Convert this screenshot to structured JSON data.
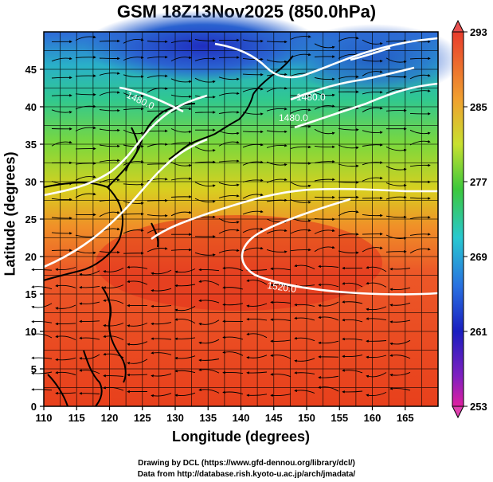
{
  "title": "GSM 18Z13Nov2025 (850.0hPa)",
  "xlabel": "Longitude (degrees)",
  "ylabel": "Latitude  (degrees)",
  "credit_line1": "Drawing by DCL (https://www.gfd-dennou.org/library/dcl/)",
  "credit_line2": "Data from http://database.rish.kyoto-u.ac.jp/arch/jmadata/",
  "chart_data": {
    "type": "heatmap",
    "x_ticks": [
      "110",
      "115",
      "120",
      "125",
      "130",
      "135",
      "140",
      "145",
      "150",
      "155",
      "160",
      "165"
    ],
    "y_ticks": [
      "0",
      "5",
      "10",
      "15",
      "20",
      "25",
      "30",
      "35",
      "40",
      "45"
    ],
    "xlim": [
      110,
      170
    ],
    "ylim": [
      0,
      50
    ],
    "colorbar_ticks": [
      "293",
      "285",
      "277",
      "269",
      "261",
      "253"
    ],
    "colorbar_range": [
      253,
      293
    ],
    "contour_labels": [
      "1480.0",
      "1480.0",
      "1520.0",
      "1480.0"
    ],
    "colors": {
      "warm": "#e8401c",
      "mid": "#3cc83c",
      "cold": "#1a32c8",
      "contour": "#ffffff"
    }
  }
}
